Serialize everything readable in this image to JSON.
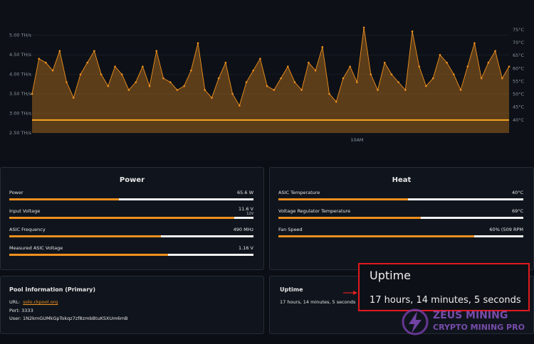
{
  "chart_data": {
    "type": "line",
    "categories": [
      null,
      null,
      null,
      null,
      null,
      null,
      null,
      null,
      null,
      null,
      null,
      null,
      null,
      null,
      null,
      null,
      null,
      null,
      null,
      null,
      null,
      null,
      null,
      null,
      null,
      null,
      null,
      null,
      null,
      null,
      null,
      null,
      null,
      null,
      null,
      null,
      null,
      null,
      null,
      null,
      null,
      null,
      null,
      null,
      null,
      null,
      null,
      "10AM",
      null,
      null,
      null,
      null,
      null,
      null,
      null,
      null,
      null,
      null,
      null,
      null,
      null,
      null,
      null,
      null,
      null,
      null,
      null,
      null,
      null,
      null
    ],
    "series": [
      {
        "color": "#f0901e",
        "values": [
          3.5,
          4.4,
          4.3,
          4.1,
          4.6,
          3.8,
          3.4,
          4.0,
          4.3,
          4.6,
          4.0,
          3.7,
          4.2,
          4.0,
          3.6,
          3.8,
          4.2,
          3.7,
          4.6,
          3.9,
          3.8,
          3.6,
          3.7,
          4.1,
          4.8,
          3.6,
          3.4,
          3.9,
          4.3,
          3.5,
          3.2,
          3.8,
          4.1,
          4.4,
          3.7,
          3.6,
          3.9,
          4.2,
          3.8,
          3.6,
          4.3,
          4.1,
          4.7,
          3.5,
          3.3,
          3.9,
          4.2,
          3.8,
          5.2,
          4.0,
          3.6,
          4.3,
          4.0,
          3.8,
          3.6,
          5.1,
          4.2,
          3.7,
          3.9,
          4.5,
          4.3,
          4.0,
          3.6,
          4.2,
          4.8,
          3.9,
          4.3,
          4.6,
          3.9,
          4.2
        ]
      },
      {
        "color": "#f5a623",
        "axis": "y2",
        "values": [
          40,
          40,
          40,
          40,
          40,
          40,
          40,
          40,
          40,
          40,
          40,
          40,
          40,
          40,
          40,
          40,
          40,
          40,
          40,
          40,
          40,
          40,
          40,
          40,
          40,
          40,
          40,
          40,
          40,
          40,
          40,
          40,
          40,
          40,
          40,
          40,
          40,
          40,
          40,
          40,
          40,
          40,
          40,
          40,
          40,
          40,
          40,
          40,
          40,
          40,
          40,
          40,
          40,
          40,
          40,
          40,
          40,
          40,
          40,
          40,
          40,
          40,
          40,
          40,
          40,
          40,
          40,
          40,
          40,
          40
        ]
      }
    ],
    "ylim": [
      2.5,
      5.25
    ],
    "yticks": [
      {
        "value": 2.5,
        "label": "2.50 TH/s"
      },
      {
        "value": 3,
        "label": "3.00 TH/s"
      },
      {
        "value": 3.5,
        "label": "3.50 TH/s"
      },
      {
        "value": 4,
        "label": "4.00 TH/s"
      },
      {
        "value": 4.5,
        "label": "4.50 TH/s"
      },
      {
        "value": 5,
        "label": "5.00 TH/s"
      }
    ],
    "y2lim": [
      35,
      76.6
    ],
    "y2ticks": [
      {
        "value": 40,
        "label": "40°C"
      },
      {
        "value": 45,
        "label": "45°C"
      },
      {
        "value": 50,
        "label": "50°C"
      },
      {
        "value": 55,
        "label": "55°C"
      },
      {
        "value": 60,
        "label": "60°C"
      },
      {
        "value": 65,
        "label": "65°C"
      },
      {
        "value": 70,
        "label": "70°C"
      },
      {
        "value": 75,
        "label": "75°C"
      }
    ],
    "grid": true
  },
  "power": {
    "title": "Power",
    "rows": [
      {
        "label": "Power",
        "value": "65.6 W",
        "progress": 45
      },
      {
        "label": "Input Voltage",
        "value": "11.6 V",
        "sub": "12V",
        "progress": 92
      },
      {
        "label": "ASIC Frequency",
        "value": "490 MHz",
        "progress": 62
      },
      {
        "label": "Measured ASIC Voltage",
        "value": "1.16 V",
        "progress": 65
      }
    ]
  },
  "heat": {
    "title": "Heat",
    "rows": [
      {
        "label": "ASIC Temperature",
        "value": "40°C",
        "progress": 53
      },
      {
        "label": "Voltage Regulator Temperature",
        "value": "69°C",
        "progress": 58
      },
      {
        "label": "Fan Speed",
        "value": "60% (509 RPM",
        "progress": 80
      }
    ]
  },
  "pool": {
    "title": "Pool Information (Primary)",
    "url_label": "URL:",
    "url": "solo.ckpool.org",
    "port_label": "Port:",
    "port": "3333",
    "user_label": "User:",
    "user": "1N2kmGUMkGpTokqz7zf8zmbBtuKSXUm6mB"
  },
  "uptime": {
    "title": "Uptime",
    "value": "17 hours, 14 minutes, 5 seconds"
  },
  "callout": {
    "title": "Uptime",
    "value": "17 hours, 14 minutes, 5 seconds"
  },
  "watermark": {
    "line1": "ZEUS MINING",
    "line2": "CRYPTO MINING PRO"
  }
}
